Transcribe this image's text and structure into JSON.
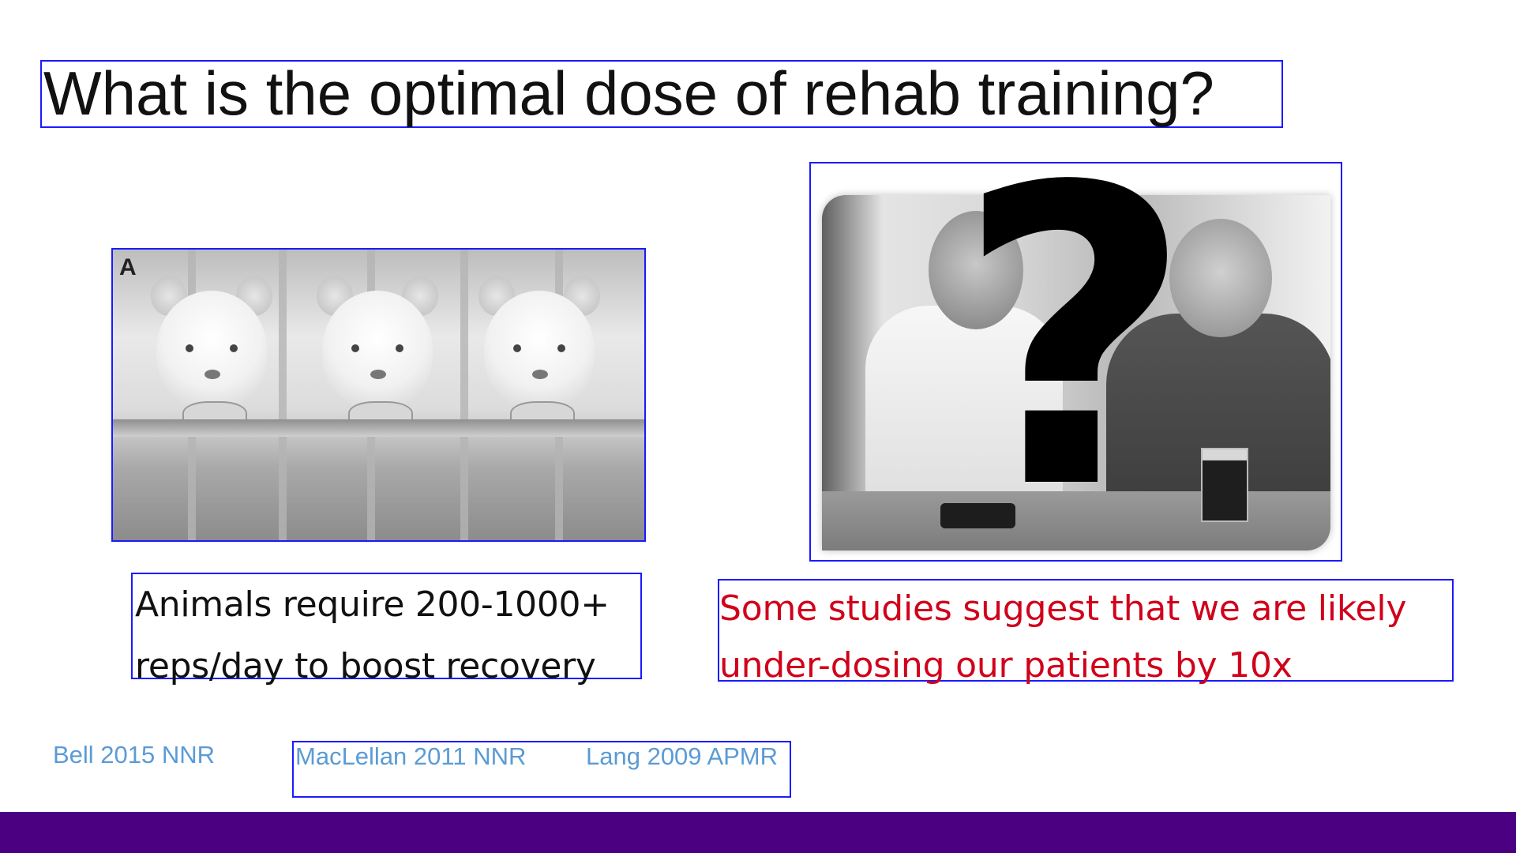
{
  "slide": {
    "title": "What is the optimal dose of rehab training?",
    "left_panel": {
      "image_label": "A",
      "caption_line1": "Animals require 200-1000+",
      "caption_line2": "reps/day to boost recovery"
    },
    "right_panel": {
      "overlay_symbol": "?",
      "caption_line1": "Some studies suggest that we are likely",
      "caption_line2": "under-dosing our patients by 10x"
    },
    "citations": {
      "bell": "Bell 2015 NNR",
      "maclellan": "MacLellan 2011 NNR",
      "lang": "Lang 2009 APMR"
    }
  },
  "colors": {
    "footer_bar": "#4b0082",
    "caption_right": "#d0021b",
    "citation": "#5b9bd5",
    "outline": "#1a1aff"
  }
}
